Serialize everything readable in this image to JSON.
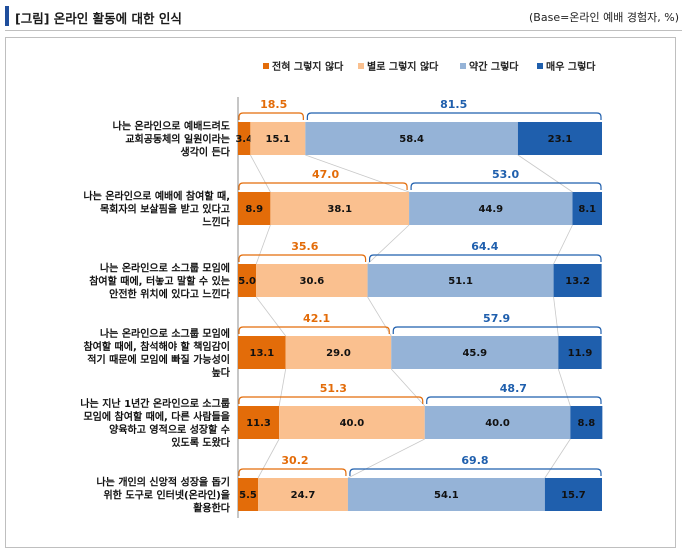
{
  "header": {
    "title": "[그림] 온라인 활동에 대한 인식",
    "base": "(Base=온라인 예배 경험자, %)"
  },
  "chart_data": {
    "type": "bar",
    "orientation": "horizontal",
    "stacked": true,
    "xlim": [
      0,
      100
    ],
    "legend_position": "top-right",
    "colors": {
      "전혀 그렇지 않다": "#e36c09",
      "별로 그렇지 않다": "#fac08f",
      "약간 그렇다": "#95b3d7",
      "매우 그렇다": "#1f5fad",
      "negative_group": "#e36c09",
      "positive_group": "#1f5fad"
    },
    "categories": [
      [
        "나는 온라인으로 예배드려도",
        "교회공동체의 일원이라는",
        "생각이 든다"
      ],
      [
        "나는 온라인으로 예배에 참여할 때,",
        "목회자의 보살핌을 받고 있다고",
        "느낀다"
      ],
      [
        "나는 온라인으로 소그룹 모임에",
        "참여할 때에, 터놓고 말할 수 있는",
        "안전한 위치에 있다고 느낀다"
      ],
      [
        "나는 온라인으로 소그룹 모임에",
        "참여할 때에, 참석해야 할 책임감이",
        "적기 때문에 모임에 빠질 가능성이",
        "높다"
      ],
      [
        "나는 지난 1년간 온라인으로 소그룹",
        "모임에 참여할 때에, 다른 사람들을",
        "양육하고 영적으로 성장할 수",
        "있도록 도왔다"
      ],
      [
        "나는 개인의 신앙적 성장을 돕기",
        "위한 도구로 인터넷(온라인)을",
        "활용한다"
      ]
    ],
    "series": [
      {
        "name": "전혀 그렇지 않다",
        "values": [
          3.4,
          8.9,
          5.0,
          13.1,
          11.3,
          5.5
        ]
      },
      {
        "name": "별로 그렇지 않다",
        "values": [
          15.1,
          38.1,
          30.6,
          29.0,
          40.0,
          24.7
        ]
      },
      {
        "name": "약간 그렇다",
        "values": [
          58.4,
          44.9,
          51.1,
          45.9,
          40.0,
          54.1
        ]
      },
      {
        "name": "매우 그렇다",
        "values": [
          23.1,
          8.1,
          13.2,
          11.9,
          8.8,
          15.7
        ]
      }
    ],
    "group_totals": {
      "negative": [
        18.5,
        47.0,
        35.6,
        42.1,
        51.3,
        30.2
      ],
      "positive": [
        81.5,
        53.0,
        64.4,
        57.9,
        48.7,
        69.8
      ]
    }
  }
}
